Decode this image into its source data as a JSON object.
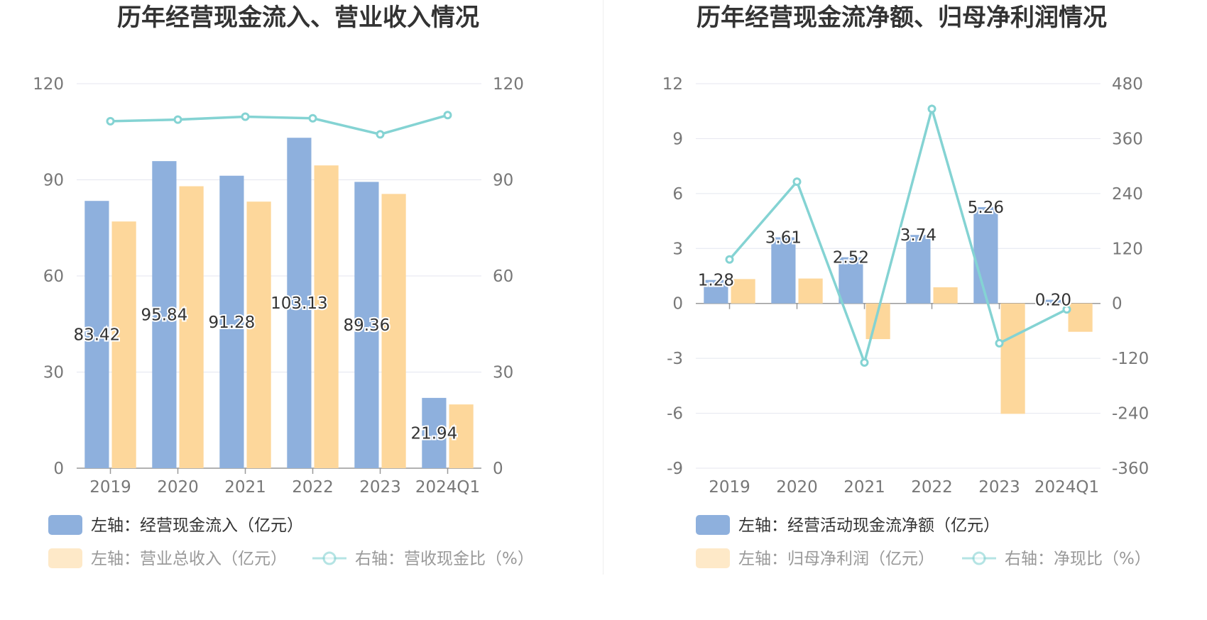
{
  "colors": {
    "primary": "#8eb0dd",
    "secondary": "#fdd79b",
    "line": "#84d3d3",
    "grid": "#e4e6ef",
    "axis": "#999999"
  },
  "chart_data": [
    {
      "type": "bar",
      "title": "历年经营现金流入、营业收入情况",
      "categories": [
        "2019",
        "2020",
        "2021",
        "2022",
        "2023",
        "2024Q1"
      ],
      "left_axis": {
        "min": 0,
        "max": 120,
        "ticks": [
          "0",
          "30",
          "60",
          "90",
          "120"
        ]
      },
      "right_axis": {
        "min": 0,
        "max": 120,
        "ticks": [
          "0",
          "30",
          "60",
          "90",
          "120"
        ]
      },
      "series": [
        {
          "name": "左轴：经营现金流入（亿元）",
          "kind": "bar",
          "axis": "left",
          "values": [
            83.42,
            95.84,
            91.28,
            103.13,
            89.36,
            21.94
          ],
          "labels": [
            "83.42",
            "95.84",
            "91.28",
            "103.13",
            "89.36",
            "21.94"
          ]
        },
        {
          "name": "左轴：营业总收入（亿元）",
          "kind": "bar",
          "axis": "left",
          "values": [
            77.0,
            88.0,
            83.2,
            94.5,
            85.6,
            19.9
          ]
        },
        {
          "name": "右轴：营收现金比（%）",
          "kind": "line",
          "axis": "right",
          "values": [
            108.3,
            108.8,
            109.7,
            109.2,
            104.2,
            110.2
          ]
        }
      ]
    },
    {
      "type": "bar",
      "title": "历年经营现金流净额、归母净利润情况",
      "categories": [
        "2019",
        "2020",
        "2021",
        "2022",
        "2023",
        "2024Q1"
      ],
      "left_axis": {
        "min": -9,
        "max": 12,
        "ticks": [
          "-9",
          "-6",
          "-3",
          "0",
          "3",
          "6",
          "9",
          "12"
        ]
      },
      "right_axis": {
        "min": -360,
        "max": 480,
        "ticks": [
          "-360",
          "-240",
          "-120",
          "0",
          "120",
          "240",
          "360",
          "480"
        ]
      },
      "series": [
        {
          "name": "左轴：经营活动现金流净额（亿元）",
          "kind": "bar",
          "axis": "left",
          "values": [
            1.28,
            3.61,
            2.52,
            3.74,
            5.26,
            0.2
          ],
          "labels": [
            "1.28",
            "3.61",
            "2.52",
            "3.74",
            "5.26",
            "0.20"
          ]
        },
        {
          "name": "左轴：归母净利润（亿元）",
          "kind": "bar",
          "axis": "left",
          "values": [
            1.33,
            1.36,
            -1.95,
            0.88,
            -6.03,
            -1.55
          ]
        },
        {
          "name": "右轴：净现比（%）",
          "kind": "line",
          "axis": "right",
          "values": [
            96,
            266,
            -129,
            425,
            -87,
            -13
          ]
        }
      ]
    }
  ]
}
